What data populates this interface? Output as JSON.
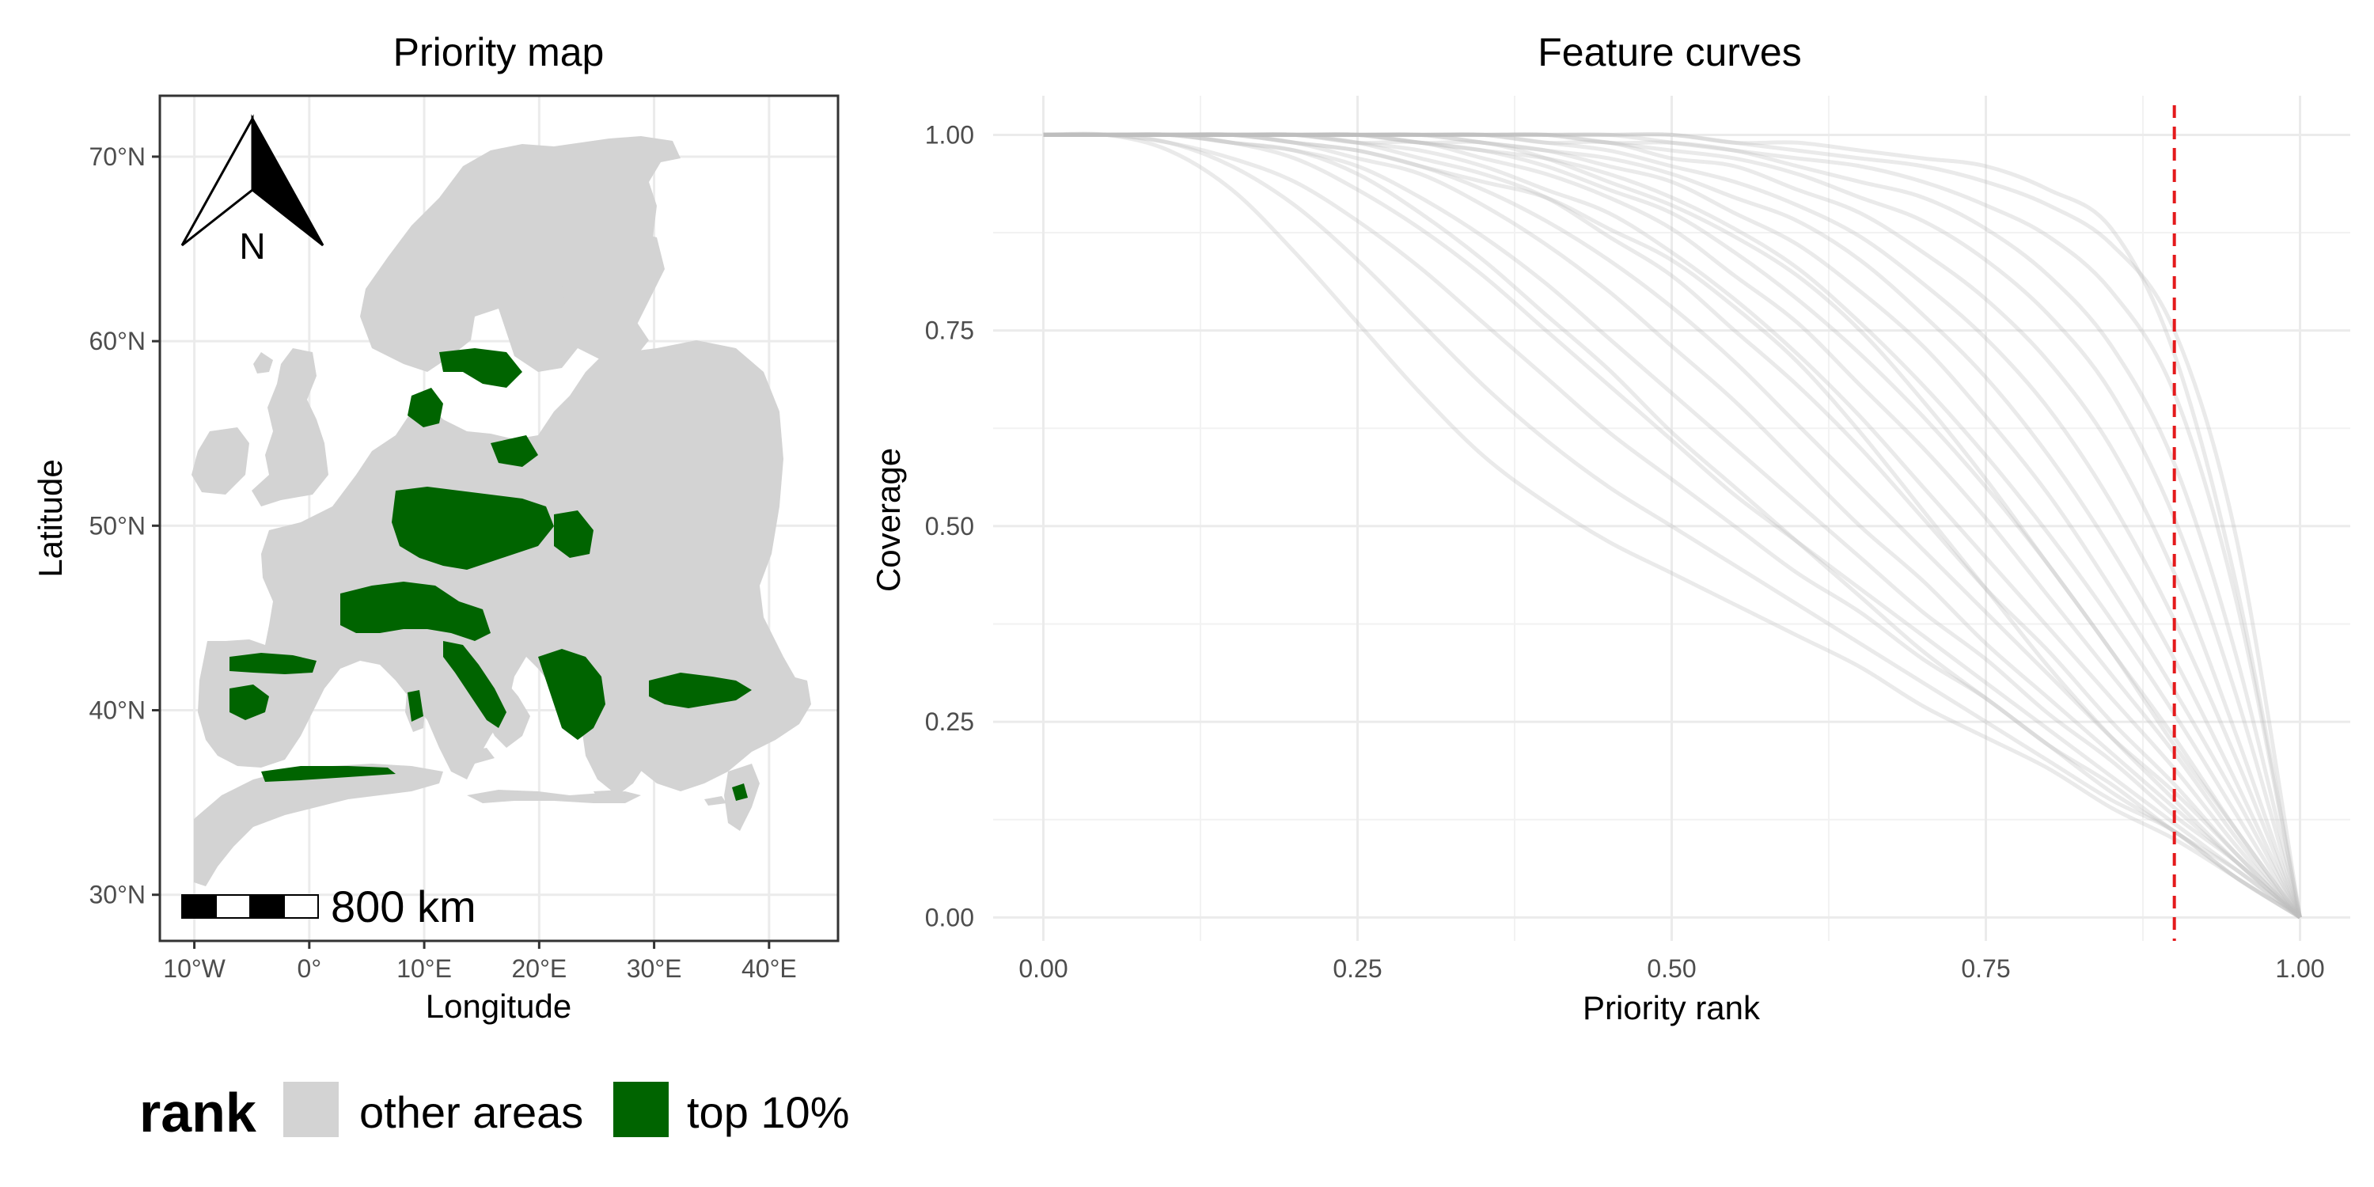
{
  "chart_data": [
    {
      "type": "map",
      "title": "Priority map",
      "xlabel": "Longitude",
      "ylabel": "Latitude",
      "xlim": [
        -13,
        46
      ],
      "ylim": [
        27.5,
        73.3
      ],
      "x_ticks": [
        {
          "value": -10,
          "label": "10°W"
        },
        {
          "value": 0,
          "label": "0°"
        },
        {
          "value": 10,
          "label": "10°E"
        },
        {
          "value": 20,
          "label": "20°E"
        },
        {
          "value": 30,
          "label": "30°E"
        },
        {
          "value": 40,
          "label": "40°E"
        }
      ],
      "y_ticks": [
        {
          "value": 30,
          "label": "30°N"
        },
        {
          "value": 40,
          "label": "40°N"
        },
        {
          "value": 50,
          "label": "50°N"
        },
        {
          "value": 60,
          "label": "60°N"
        },
        {
          "value": 70,
          "label": "70°N"
        }
      ],
      "north_arrow_label": "N",
      "scale_bar_label": "800 km",
      "legend": {
        "title": "rank",
        "position": "bottom",
        "entries": [
          {
            "label": "other areas",
            "color": "#d3d3d3"
          },
          {
            "label": "top 10%",
            "color": "#006400"
          }
        ]
      },
      "colors": {
        "other_areas": "#d3d3d3",
        "top_10": "#006400",
        "panel_border": "#333333"
      }
    },
    {
      "type": "line",
      "title": "Feature curves",
      "xlabel": "Priority rank",
      "ylabel": "Coverage",
      "xlim": [
        -0.04,
        1.04
      ],
      "ylim": [
        -0.03,
        1.05
      ],
      "x_ticks": [
        {
          "value": 0,
          "label": "0.00"
        },
        {
          "value": 0.25,
          "label": "0.25"
        },
        {
          "value": 0.5,
          "label": "0.50"
        },
        {
          "value": 0.75,
          "label": "0.75"
        },
        {
          "value": 1,
          "label": "1.00"
        }
      ],
      "y_ticks": [
        {
          "value": 0,
          "label": "0.00"
        },
        {
          "value": 0.25,
          "label": "0.25"
        },
        {
          "value": 0.5,
          "label": "0.50"
        },
        {
          "value": 0.75,
          "label": "0.75"
        },
        {
          "value": 1,
          "label": "1.00"
        }
      ],
      "grid": true,
      "line_color": "#bebebe",
      "reference_line": {
        "x": 0.9,
        "color": "#e41a1c",
        "style": "dashed"
      },
      "x": [
        0,
        0.05,
        0.1,
        0.15,
        0.2,
        0.25,
        0.3,
        0.35,
        0.4,
        0.45,
        0.5,
        0.55,
        0.6,
        0.65,
        0.7,
        0.75,
        0.8,
        0.85,
        0.9,
        0.95,
        1
      ],
      "series": [
        {
          "values": [
            1,
            1,
            0.98,
            0.93,
            0.85,
            0.76,
            0.67,
            0.59,
            0.53,
            0.48,
            0.44,
            0.4,
            0.36,
            0.32,
            0.27,
            0.23,
            0.19,
            0.14,
            0.1,
            0.05,
            0
          ]
        },
        {
          "values": [
            1,
            1,
            0.99,
            0.96,
            0.91,
            0.84,
            0.76,
            0.68,
            0.61,
            0.55,
            0.5,
            0.45,
            0.4,
            0.35,
            0.3,
            0.25,
            0.2,
            0.15,
            0.11,
            0.05,
            0
          ]
        },
        {
          "values": [
            1,
            1,
            0.99,
            0.97,
            0.94,
            0.89,
            0.83,
            0.76,
            0.69,
            0.62,
            0.56,
            0.5,
            0.44,
            0.39,
            0.33,
            0.28,
            0.22,
            0.17,
            0.11,
            0.06,
            0
          ]
        },
        {
          "values": [
            1,
            1,
            1,
            0.99,
            0.97,
            0.93,
            0.88,
            0.82,
            0.75,
            0.68,
            0.61,
            0.54,
            0.48,
            0.42,
            0.36,
            0.3,
            0.24,
            0.18,
            0.12,
            0.06,
            0
          ]
        },
        {
          "values": [
            1,
            1,
            1,
            0.99,
            0.98,
            0.96,
            0.92,
            0.87,
            0.81,
            0.74,
            0.67,
            0.6,
            0.53,
            0.46,
            0.39,
            0.33,
            0.26,
            0.2,
            0.13,
            0.07,
            0
          ]
        },
        {
          "values": [
            1,
            1,
            1,
            1,
            0.99,
            0.97,
            0.95,
            0.91,
            0.86,
            0.8,
            0.73,
            0.66,
            0.58,
            0.5,
            0.43,
            0.35,
            0.28,
            0.21,
            0.14,
            0.07,
            0
          ]
        },
        {
          "values": [
            1,
            1,
            1,
            1,
            0.99,
            0.98,
            0.96,
            0.93,
            0.89,
            0.84,
            0.78,
            0.71,
            0.63,
            0.55,
            0.47,
            0.39,
            0.31,
            0.23,
            0.16,
            0.08,
            0
          ]
        },
        {
          "values": [
            1,
            1,
            1,
            1,
            1,
            0.99,
            0.97,
            0.95,
            0.92,
            0.87,
            0.82,
            0.75,
            0.68,
            0.6,
            0.51,
            0.42,
            0.34,
            0.25,
            0.17,
            0.08,
            0
          ]
        },
        {
          "values": [
            1,
            1,
            1,
            1,
            1,
            0.99,
            0.98,
            0.96,
            0.93,
            0.9,
            0.85,
            0.79,
            0.72,
            0.64,
            0.55,
            0.46,
            0.37,
            0.28,
            0.19,
            0.09,
            0
          ]
        },
        {
          "values": [
            1,
            1,
            1,
            1,
            1,
            0.99,
            0.99,
            0.97,
            0.95,
            0.92,
            0.88,
            0.82,
            0.76,
            0.68,
            0.6,
            0.51,
            0.41,
            0.31,
            0.21,
            0.1,
            0
          ]
        },
        {
          "values": [
            1,
            1,
            1,
            1,
            1,
            1,
            0.99,
            0.98,
            0.96,
            0.93,
            0.9,
            0.85,
            0.79,
            0.72,
            0.64,
            0.55,
            0.45,
            0.34,
            0.23,
            0.11,
            0
          ]
        },
        {
          "values": [
            1,
            1,
            1,
            1,
            1,
            1,
            0.99,
            0.98,
            0.97,
            0.95,
            0.92,
            0.88,
            0.83,
            0.76,
            0.68,
            0.59,
            0.49,
            0.38,
            0.26,
            0.13,
            0
          ]
        },
        {
          "values": [
            1,
            1,
            1,
            1,
            1,
            1,
            1,
            0.99,
            0.98,
            0.96,
            0.94,
            0.9,
            0.86,
            0.8,
            0.73,
            0.64,
            0.54,
            0.42,
            0.29,
            0.15,
            0
          ]
        },
        {
          "values": [
            1,
            1,
            1,
            1,
            1,
            1,
            1,
            0.99,
            0.98,
            0.97,
            0.95,
            0.92,
            0.89,
            0.84,
            0.77,
            0.69,
            0.59,
            0.47,
            0.33,
            0.17,
            0
          ]
        },
        {
          "values": [
            1,
            1,
            1,
            1,
            1,
            1,
            1,
            1,
            0.99,
            0.98,
            0.96,
            0.94,
            0.91,
            0.87,
            0.81,
            0.74,
            0.65,
            0.53,
            0.38,
            0.2,
            0
          ]
        },
        {
          "values": [
            1,
            1,
            1,
            1,
            1,
            1,
            1,
            1,
            0.99,
            0.99,
            0.97,
            0.96,
            0.93,
            0.9,
            0.85,
            0.79,
            0.71,
            0.6,
            0.44,
            0.23,
            0
          ]
        },
        {
          "values": [
            1,
            1,
            1,
            1,
            1,
            1,
            1,
            1,
            1,
            0.99,
            0.98,
            0.97,
            0.95,
            0.92,
            0.89,
            0.84,
            0.77,
            0.67,
            0.51,
            0.28,
            0
          ]
        },
        {
          "values": [
            1,
            1,
            1,
            1,
            1,
            1,
            1,
            1,
            1,
            0.99,
            0.99,
            0.98,
            0.96,
            0.94,
            0.92,
            0.88,
            0.82,
            0.73,
            0.58,
            0.33,
            0
          ]
        },
        {
          "values": [
            1,
            1,
            1,
            1,
            1,
            1,
            1,
            1,
            1,
            1,
            0.99,
            0.98,
            0.97,
            0.96,
            0.94,
            0.91,
            0.87,
            0.8,
            0.67,
            0.4,
            0
          ]
        },
        {
          "values": [
            1,
            1,
            1,
            1,
            1,
            1,
            1,
            1,
            1,
            1,
            1,
            0.99,
            0.98,
            0.97,
            0.96,
            0.94,
            0.91,
            0.86,
            0.75,
            0.48,
            0
          ]
        },
        {
          "values": [
            1,
            1,
            1,
            1,
            1,
            1,
            1,
            1,
            1,
            1,
            1,
            0.99,
            0.99,
            0.98,
            0.97,
            0.96,
            0.93,
            0.88,
            0.72,
            0.42,
            0
          ]
        },
        {
          "values": [
            1,
            1,
            1,
            1,
            0.99,
            0.98,
            0.96,
            0.94,
            0.92,
            0.88,
            0.84,
            0.78,
            0.71,
            0.62,
            0.52,
            0.42,
            0.32,
            0.23,
            0.15,
            0.07,
            0
          ]
        },
        {
          "values": [
            1,
            1,
            1,
            0.99,
            0.98,
            0.95,
            0.9,
            0.84,
            0.77,
            0.7,
            0.62,
            0.55,
            0.48,
            0.41,
            0.34,
            0.28,
            0.22,
            0.16,
            0.11,
            0.05,
            0
          ]
        },
        {
          "values": [
            1,
            1,
            1,
            1,
            1,
            1,
            0.99,
            0.99,
            0.97,
            0.94,
            0.91,
            0.87,
            0.82,
            0.75,
            0.66,
            0.56,
            0.45,
            0.34,
            0.22,
            0.11,
            0
          ]
        }
      ]
    }
  ]
}
